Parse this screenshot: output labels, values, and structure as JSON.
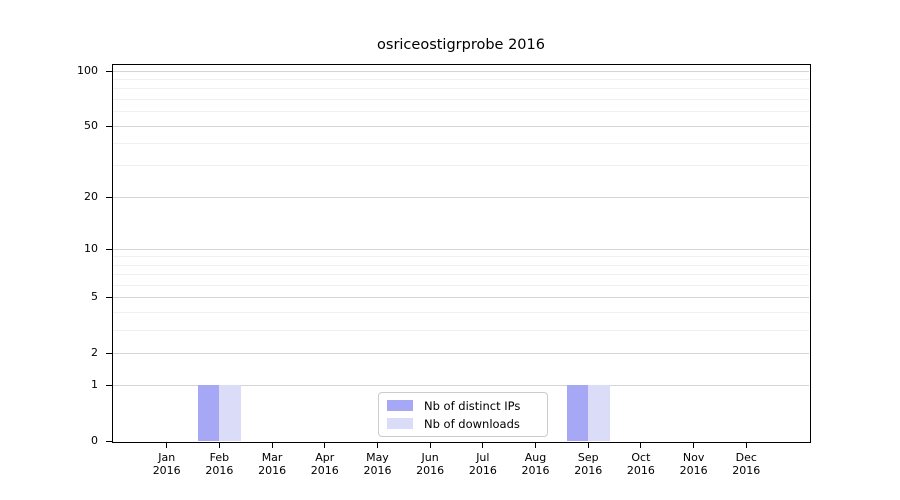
{
  "chart_data": {
    "type": "bar",
    "title": "osriceostigrprobe 2016",
    "categories": [
      [
        "Jan",
        "2016"
      ],
      [
        "Feb",
        "2016"
      ],
      [
        "Mar",
        "2016"
      ],
      [
        "Apr",
        "2016"
      ],
      [
        "May",
        "2016"
      ],
      [
        "Jun",
        "2016"
      ],
      [
        "Jul",
        "2016"
      ],
      [
        "Aug",
        "2016"
      ],
      [
        "Sep",
        "2016"
      ],
      [
        "Oct",
        "2016"
      ],
      [
        "Nov",
        "2016"
      ],
      [
        "Dec",
        "2016"
      ]
    ],
    "series": [
      {
        "name": "Nb of distinct IPs",
        "color": "#a6a7f5",
        "values": [
          0,
          1,
          0,
          0,
          0,
          0,
          0,
          0,
          1,
          0,
          0,
          0
        ]
      },
      {
        "name": "Nb of downloads",
        "color": "#dbdcf8",
        "values": [
          0,
          1,
          0,
          0,
          0,
          0,
          0,
          0,
          1,
          0,
          0,
          0
        ]
      }
    ],
    "xlabel": "",
    "ylabel": "",
    "yscale": "log10(1+x)",
    "ylim": [
      0,
      107.8
    ],
    "yticks": [
      0,
      1,
      2,
      5,
      10,
      20,
      50,
      100
    ],
    "yticks_minor": [
      3,
      4,
      6,
      7,
      8,
      9,
      30,
      40,
      60,
      70,
      80,
      90
    ],
    "grid": "horizontal",
    "legend": {
      "position": "bottom-center-inside",
      "labels": [
        "Nb of distinct IPs",
        "Nb of downloads"
      ]
    },
    "colors": {
      "axis": "#000000",
      "grid_major": "#d4d4d4",
      "grid_minor": "#f0f0f0",
      "legend_border": "#cccccc",
      "background": "#ffffff"
    }
  }
}
